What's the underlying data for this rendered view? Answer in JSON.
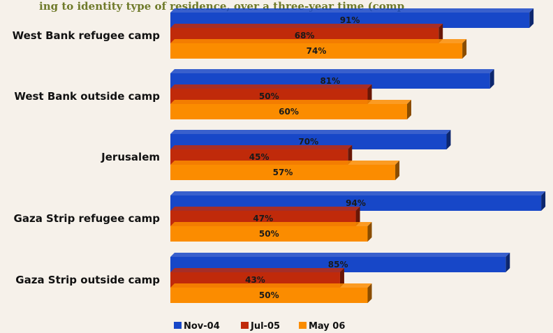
{
  "title": "ing to identity type of residence, over a three-year time (comp",
  "colors": {
    "background": "#f6f1ea",
    "title": "#6f7a2a"
  },
  "chart_data": {
    "type": "bar",
    "orientation": "horizontal",
    "categories": [
      "West Bank refugee camp",
      "West Bank outside camp",
      "Jerusalem",
      "Gaza Strip refugee camp",
      "Gaza Strip outside camp"
    ],
    "series": [
      {
        "name": "Nov-04",
        "color": "#1747c8",
        "values": [
          91,
          81,
          70,
          94,
          85
        ]
      },
      {
        "name": "Jul-05",
        "color": "#c02a0a",
        "values": [
          68,
          50,
          45,
          47,
          43
        ]
      },
      {
        "name": "May 06",
        "color": "#fb8c00",
        "values": [
          74,
          60,
          57,
          50,
          50
        ]
      }
    ],
    "value_suffix": "%",
    "xlim": [
      0,
      100
    ],
    "grid": false,
    "legend": "bottom"
  }
}
